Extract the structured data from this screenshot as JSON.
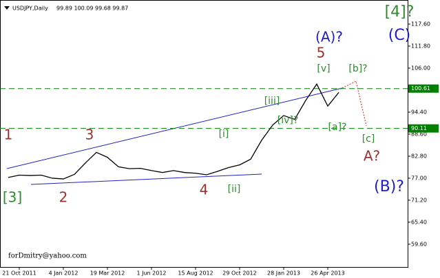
{
  "chart_data": {
    "type": "line",
    "title": "USDJPY,Daily",
    "subtitle": "99.89 100.09 99.68 99.87",
    "watermark": "forDmitry@yahoo.com",
    "categories": [
      null,
      "21 Oct 2011",
      null,
      null,
      null,
      "4 Jan 2012",
      null,
      null,
      null,
      "19 Mar 2012",
      null,
      null,
      null,
      "1 Jun 2012",
      null,
      null,
      null,
      "15 Aug 2012",
      null,
      null,
      null,
      "29 Oct 2012",
      null,
      null,
      null,
      "28 Jan 2013",
      null,
      null,
      null,
      "26 Apr 2013",
      null
    ],
    "series": [
      {
        "name": "USDJPY",
        "color": "#000000",
        "values": [
          77.2,
          77.8,
          77.7,
          77.8,
          77.0,
          76.8,
          78.0,
          81.0,
          83.8,
          82.5,
          80.0,
          79.5,
          79.6,
          79.0,
          78.5,
          79.0,
          78.5,
          78.3,
          77.9,
          78.8,
          79.8,
          80.5,
          82.0,
          87.0,
          91.0,
          93.5,
          92.5,
          97.5,
          101.8,
          96.0,
          99.6
        ]
      }
    ],
    "ylim": [
      53.6,
      123.95
    ],
    "yticks": [
      {
        "value": 117.6,
        "label": "117.60"
      },
      {
        "value": 111.8,
        "label": "111.80"
      },
      {
        "value": 106,
        "label": "106.00"
      },
      {
        "value": 94.4,
        "label": "94.40"
      },
      {
        "value": 88.6,
        "label": "88.60"
      },
      {
        "value": 82.8,
        "label": "82.80"
      },
      {
        "value": 77,
        "label": "77.00"
      },
      {
        "value": 71.2,
        "label": "71.20"
      },
      {
        "value": 65.4,
        "label": "65.40"
      },
      {
        "value": 59.6,
        "label": "59.60"
      }
    ],
    "levels": [
      100.61,
      90.11
    ],
    "level_color": "#008000",
    "annotations": [
      {
        "text": "[4]?",
        "color": "#2e8b2e"
      },
      {
        "text": "(C)",
        "color": "#1c1ccc"
      },
      {
        "text": "(A)?",
        "color": "#1c1ccc"
      },
      {
        "text": "5",
        "color": "#9b3030"
      },
      {
        "text": "[v]",
        "color": "#2e8b2e"
      },
      {
        "text": "[b]?",
        "color": "#2e8b2e"
      },
      {
        "text": "[iii]",
        "color": "#2e8b2e"
      },
      {
        "text": "[iv]?",
        "color": "#2e8b2e"
      },
      {
        "text": "[a]?",
        "color": "#2e8b2e"
      },
      {
        "text": "[c]",
        "color": "#2e8b2e"
      },
      {
        "text": "A?",
        "color": "#9b3030"
      },
      {
        "text": "[i]",
        "color": "#2e8b2e"
      },
      {
        "text": "[ii]",
        "color": "#2e8b2e"
      },
      {
        "text": "4",
        "color": "#9b3030"
      },
      {
        "text": "(B)?",
        "color": "#1c1ccc"
      },
      {
        "text": "1",
        "color": "#9b3030"
      },
      {
        "text": "3",
        "color": "#9b3030"
      },
      {
        "text": "2",
        "color": "#9b3030"
      },
      {
        "text": "[3]",
        "color": "#2e8b2e"
      }
    ]
  }
}
